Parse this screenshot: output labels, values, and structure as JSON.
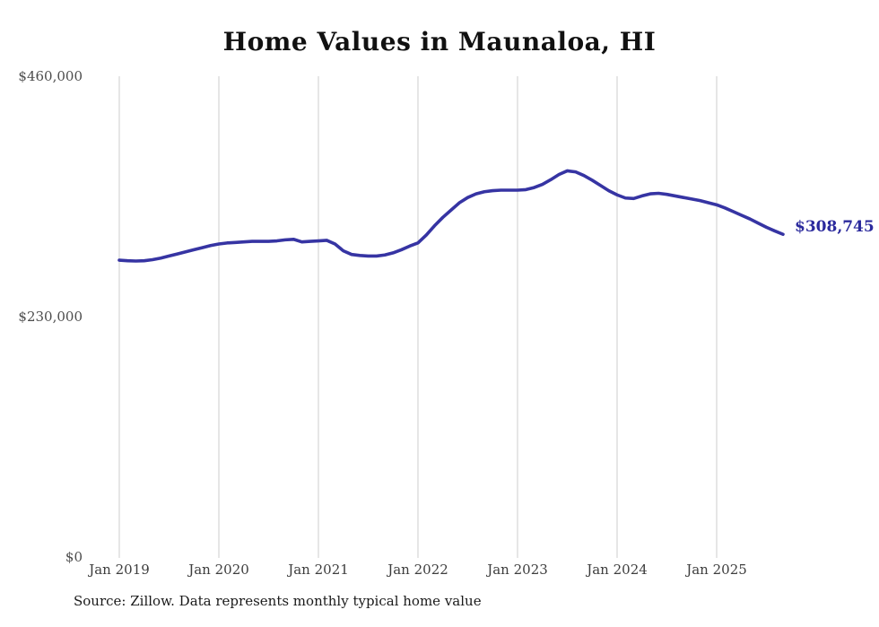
{
  "chart_data": {
    "type": "line",
    "title": "Home Values in Maunaloa, HI",
    "xlabel": "",
    "ylabel": "",
    "ylim": [
      0,
      460000
    ],
    "grid": "vertical-only",
    "legend": "none",
    "x_tick_labels": [
      "Jan 2019",
      "Jan 2020",
      "Jan 2021",
      "Jan 2022",
      "Jan 2023",
      "Jan 2024",
      "Jan 2025"
    ],
    "y_tick_labels": [
      "$460,000",
      "$230,000",
      "$0"
    ],
    "y_ticks": [
      460000,
      230000,
      0
    ],
    "end_label": "$308,745",
    "source": "Source: Zillow. Data represents monthly typical home value",
    "colors": {
      "line": "#3634a3",
      "end_label": "#2b2a9d",
      "grid": "#cccccc",
      "y_axis_text": "#4d4d4d",
      "x_axis_text": "#3d3d3d",
      "title_text": "#111111"
    },
    "x": [
      "2019-01",
      "2019-02",
      "2019-03",
      "2019-04",
      "2019-05",
      "2019-06",
      "2019-07",
      "2019-08",
      "2019-09",
      "2019-10",
      "2019-11",
      "2019-12",
      "2020-01",
      "2020-02",
      "2020-03",
      "2020-04",
      "2020-05",
      "2020-06",
      "2020-07",
      "2020-08",
      "2020-09",
      "2020-10",
      "2020-11",
      "2020-12",
      "2021-01",
      "2021-02",
      "2021-03",
      "2021-04",
      "2021-05",
      "2021-06",
      "2021-07",
      "2021-08",
      "2021-09",
      "2021-10",
      "2021-11",
      "2021-12",
      "2022-01",
      "2022-02",
      "2022-03",
      "2022-04",
      "2022-05",
      "2022-06",
      "2022-07",
      "2022-08",
      "2022-09",
      "2022-10",
      "2022-11",
      "2022-12",
      "2023-01",
      "2023-02",
      "2023-03",
      "2023-04",
      "2023-05",
      "2023-06",
      "2023-07",
      "2023-08",
      "2023-09",
      "2023-10",
      "2023-11",
      "2023-12",
      "2024-01",
      "2024-02",
      "2024-03",
      "2024-04",
      "2024-05",
      "2024-06",
      "2024-07",
      "2024-08",
      "2024-09",
      "2024-10",
      "2024-11",
      "2024-12",
      "2025-01",
      "2025-02",
      "2025-03",
      "2025-04",
      "2025-05",
      "2025-06",
      "2025-07",
      "2025-08",
      "2025-09"
    ],
    "values": [
      284000,
      283500,
      283200,
      283500,
      284500,
      286000,
      288000,
      290000,
      292000,
      294000,
      296000,
      298000,
      299500,
      300500,
      301000,
      301500,
      302000,
      302000,
      302000,
      302500,
      303500,
      304000,
      301500,
      302000,
      302500,
      303000,
      299500,
      293000,
      289500,
      288500,
      288000,
      288000,
      289000,
      291000,
      294000,
      297500,
      300500,
      308000,
      317000,
      325000,
      332000,
      339000,
      344000,
      347500,
      349500,
      350500,
      351000,
      351000,
      351000,
      351500,
      353500,
      356500,
      361000,
      366000,
      369500,
      368500,
      365000,
      360500,
      355500,
      350500,
      346500,
      343500,
      343000,
      345500,
      347500,
      348000,
      347000,
      345500,
      344000,
      342500,
      341000,
      339000,
      337000,
      334000,
      330500,
      327000,
      323500,
      319500,
      315500,
      312000,
      308745
    ]
  }
}
